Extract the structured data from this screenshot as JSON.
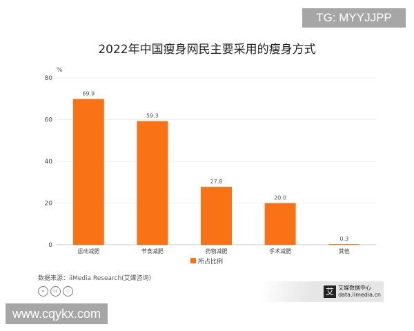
{
  "chart_data": {
    "type": "bar",
    "title": "2022年中国瘦身网民主要采用的瘦身方式",
    "ylabel": "%",
    "ylim": [
      0,
      80
    ],
    "yticks": [
      0,
      20,
      40,
      60,
      80
    ],
    "grid": true,
    "legend_position": "bottom",
    "categories": [
      "运动减肥",
      "节食减肥",
      "药物减肥",
      "手术减肥",
      "其他"
    ],
    "series": [
      {
        "name": "所占比例",
        "values": [
          69.9,
          59.3,
          27.8,
          20.0,
          0.3
        ],
        "labels": [
          "69.9",
          "59.3",
          "27.8",
          "20.0",
          "0.3"
        ],
        "color": "#f97316"
      }
    ]
  },
  "source": "数据来源：iiMedia Research(艾媒咨询)",
  "license_icons": [
    "=",
    "cc",
    "i"
  ],
  "brand": {
    "logo": "艾",
    "name": "艾媒数据中心",
    "url": "data.iimedia.cn"
  },
  "watermarks": {
    "tg": "TG: MYYJJPP",
    "site": "www.cqykx.com"
  }
}
